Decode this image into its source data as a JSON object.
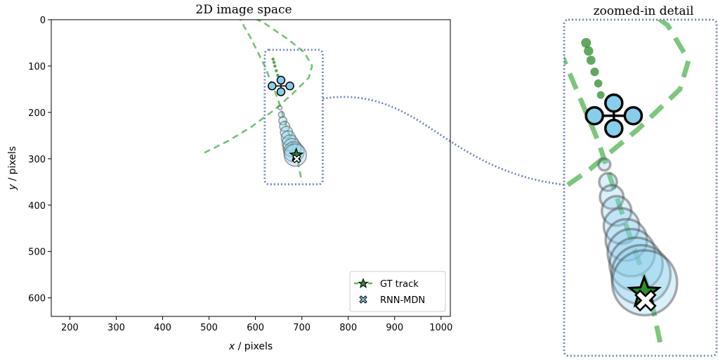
{
  "chart_data": [
    {
      "type": "scatter",
      "title": "2D image space",
      "xlabel_var": "x",
      "xlabel_unit": " /  pixels",
      "ylabel_var": "y",
      "ylabel_unit": " / pixels",
      "xlim": [
        160,
        1020
      ],
      "ylim": [
        640,
        0
      ],
      "xticks": [
        200,
        300,
        400,
        500,
        600,
        700,
        800,
        900,
        1000
      ],
      "yticks": [
        0,
        100,
        200,
        300,
        400,
        500,
        600
      ],
      "legend": {
        "placement": "bottom-right",
        "entries": [
          "GT track",
          "RNN-MDN"
        ]
      },
      "series": [
        {
          "name": "GT track",
          "style": "dashed",
          "color": "#5cb85c",
          "points": [
            [
              490,
              287
            ],
            [
              540,
              262
            ],
            [
              590,
              232
            ],
            [
              640,
              195
            ],
            [
              680,
              160
            ],
            [
              715,
              125
            ],
            [
              722,
              100
            ],
            [
              705,
              70
            ],
            [
              670,
              42
            ],
            [
              620,
              8
            ],
            [
              585,
              -10
            ]
          ]
        },
        {
          "style": "dashed",
          "color": "#5cb85c",
          "points": [
            [
              562,
              -10
            ],
            [
              590,
              40
            ],
            [
              620,
              100
            ],
            [
              648,
              170
            ],
            [
              670,
              240
            ],
            [
              690,
              300
            ],
            [
              700,
              350
            ]
          ]
        },
        {
          "style": "markers",
          "color": "#2e8b2e",
          "points": [
            [
              638,
              85
            ],
            [
              640,
              92
            ],
            [
              642,
              100
            ],
            [
              645,
              110
            ],
            [
              648,
              120
            ],
            [
              650,
              130
            ]
          ]
        },
        {
          "name": "RNN-MDN",
          "style": "circles",
          "color": "#87ceeb",
          "points": [
            [
              653,
              190
            ],
            [
              656,
              205
            ],
            [
              659,
              218
            ],
            [
              663,
              230
            ],
            [
              667,
              243
            ],
            [
              671,
              255
            ],
            [
              675,
              266
            ],
            [
              679,
              276
            ],
            [
              683,
              285
            ],
            [
              686,
              292
            ]
          ],
          "radii": [
            4,
            6,
            8,
            10,
            12,
            14,
            16,
            18,
            20,
            22
          ]
        }
      ],
      "markers": {
        "observed_input": [
          655,
          143
        ],
        "gt_endpoint": [
          688,
          292
        ],
        "prediction_endpoint": [
          689,
          300
        ]
      },
      "zoom_box": {
        "x": [
          620,
          745
        ],
        "y": [
          65,
          355
        ]
      }
    }
  ],
  "zoom_panel": {
    "title": "zoomed-in detail"
  },
  "colors": {
    "box": "#6f86b8",
    "track": "#5cb85c",
    "track_dark": "#2e8b2e",
    "prediction": "#87ceeb"
  }
}
